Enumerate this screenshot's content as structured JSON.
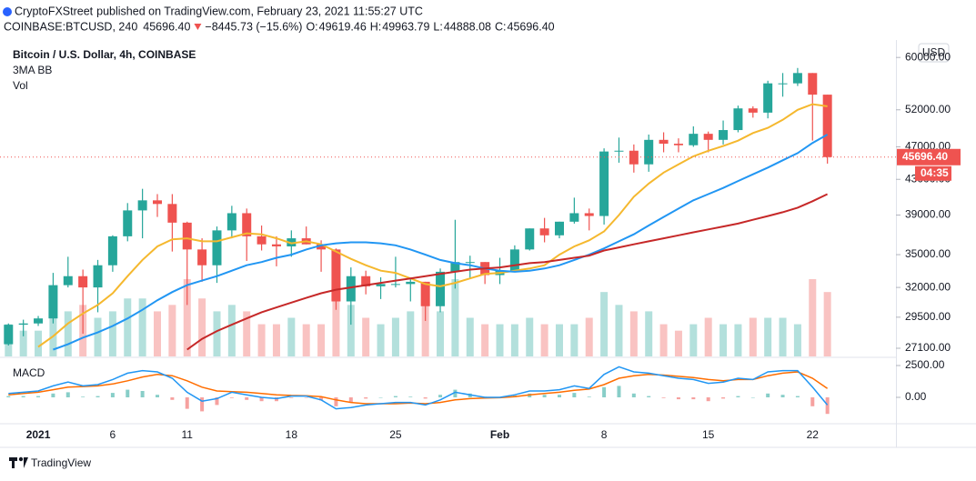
{
  "header": {
    "author": "CryptoFXStreet",
    "published": "published on TradingView.com, February 23, 2021 11:55:27 UTC",
    "symbol": "COINBASE:BTCUSD, 240",
    "last": "45696.40",
    "change": "−8445.73 (−15.6%)",
    "o_label": "O:",
    "o": "49619.46",
    "h_label": "H:",
    "h": "49963.79",
    "l_label": "L:",
    "l": "44888.08",
    "c_label": "C:",
    "c": "45696.40"
  },
  "legend": {
    "title": "Bitcoin / U.S. Dollar, 4h, COINBASE",
    "ma": "3MA BB",
    "vol": "Vol",
    "macd": "MACD"
  },
  "currency": "USD",
  "countdown": "04:35",
  "footer": "TradingView",
  "chart_data": {
    "type": "candlestick",
    "categories": [
      null,
      null,
      "2021",
      null,
      null,
      null,
      null,
      "6",
      null,
      null,
      null,
      null,
      "11",
      null,
      null,
      null,
      null,
      null,
      null,
      "18",
      null,
      null,
      null,
      null,
      null,
      null,
      "25",
      null,
      null,
      null,
      null,
      null,
      null,
      "Feb",
      null,
      null,
      null,
      null,
      null,
      null,
      "8",
      null,
      null,
      null,
      null,
      null,
      null,
      "15",
      null,
      null,
      null,
      null,
      null,
      null,
      "22",
      null
    ],
    "open": [
      27400,
      28900,
      29000,
      29400,
      32200,
      33000,
      32000,
      34000,
      36800,
      39500,
      40600,
      40200,
      38200,
      35500,
      34000,
      37400,
      39200,
      36800,
      36000,
      35800,
      36600,
      36000,
      35500,
      30800,
      33000,
      32100,
      32300,
      32300,
      32500,
      30400,
      33400,
      34300,
      34300,
      33100,
      33500,
      35500,
      37600,
      36900,
      38300,
      39200,
      38900,
      46400,
      46500,
      44800,
      47900,
      47400,
      47200,
      48700,
      47900,
      49200,
      52200,
      51600,
      55900,
      55900,
      57500,
      54200
    ],
    "high": [
      29000,
      29300,
      29600,
      33300,
      34800,
      33600,
      34500,
      36900,
      40300,
      41900,
      41300,
      41300,
      38300,
      36600,
      37800,
      40000,
      39700,
      37900,
      36800,
      37400,
      37800,
      36400,
      35600,
      33800,
      33500,
      32900,
      34800,
      32800,
      32500,
      33700,
      38500,
      34900,
      34300,
      34700,
      35900,
      37600,
      38700,
      38300,
      40900,
      39700,
      46800,
      48200,
      47300,
      48600,
      48900,
      48100,
      49700,
      49000,
      50500,
      52600,
      52500,
      56300,
      57500,
      58300,
      57500,
      54200
    ],
    "low": [
      27300,
      28000,
      28800,
      29000,
      32000,
      28200,
      29900,
      33400,
      36300,
      36600,
      38800,
      35300,
      30500,
      32500,
      32400,
      36600,
      34400,
      35400,
      33900,
      34800,
      36000,
      33400,
      30100,
      28900,
      31400,
      31000,
      32000,
      30800,
      29200,
      29900,
      31900,
      32800,
      32300,
      32300,
      33400,
      35400,
      36200,
      36600,
      38100,
      37400,
      38000,
      45000,
      43800,
      43900,
      46300,
      46300,
      47000,
      46300,
      47300,
      48900,
      50900,
      50800,
      53900,
      55500,
      47800,
      44888
    ],
    "close": [
      28900,
      29000,
      29400,
      32200,
      33000,
      32000,
      34000,
      36800,
      39500,
      40600,
      40200,
      38200,
      35500,
      34000,
      37400,
      39200,
      36800,
      36000,
      35800,
      36600,
      36000,
      35500,
      30800,
      33000,
      32100,
      32300,
      32300,
      32500,
      30400,
      33400,
      34300,
      34300,
      33100,
      33500,
      35500,
      37600,
      36900,
      38300,
      39200,
      38900,
      46400,
      46500,
      44800,
      47900,
      47400,
      47200,
      48700,
      47900,
      49200,
      52200,
      51600,
      55900,
      55900,
      57500,
      54200,
      45696
    ],
    "volume": [
      5,
      4,
      4,
      6,
      7,
      8,
      6,
      7,
      9,
      9,
      7,
      8,
      12,
      9,
      7,
      8,
      7,
      5,
      5,
      6,
      5,
      5,
      9,
      8,
      6,
      5,
      6,
      7,
      8,
      7,
      12,
      6,
      5,
      5,
      5,
      6,
      5,
      5,
      5,
      6,
      10,
      8,
      7,
      7,
      5,
      4,
      5,
      6,
      5,
      5,
      6,
      6,
      6,
      5,
      12,
      10
    ],
    "up_color": "#26a69a",
    "down_color": "#ef5350",
    "ylim": [
      26500,
      62000
    ],
    "log_scale": true,
    "grid": false,
    "yticks": [
      {
        "value": 60000,
        "label": "60000.00"
      },
      {
        "value": 52000,
        "label": "52000.00"
      },
      {
        "value": 47000,
        "label": "47000.00"
      },
      {
        "value": 43000,
        "label": "43000.00"
      },
      {
        "value": 39000,
        "label": "39000.00"
      },
      {
        "value": 35000,
        "label": "35000.00"
      },
      {
        "value": 32000,
        "label": "32000.00"
      },
      {
        "value": 29500,
        "label": "29500.00"
      },
      {
        "value": 27100,
        "label": "27100.00"
      }
    ],
    "last_price": {
      "value": 45696.4,
      "label": "45696.40"
    },
    "ma": [
      {
        "color": "#f5b82e",
        "values": [
          null,
          null,
          27200,
          28000,
          29000,
          29800,
          30500,
          31500,
          33000,
          34500,
          35800,
          36500,
          36600,
          36300,
          36300,
          36700,
          37100,
          37000,
          36600,
          36100,
          36300,
          36000,
          35300,
          34600,
          34000,
          33500,
          33300,
          32800,
          32300,
          32100,
          32400,
          32800,
          33200,
          33300,
          33500,
          33700,
          34000,
          35000,
          35800,
          36400,
          37300,
          39000,
          41000,
          42500,
          43800,
          44800,
          45800,
          46500,
          47100,
          47800,
          48800,
          49500,
          50600,
          52000,
          52800,
          52500
        ]
      },
      {
        "color": "#2196f3",
        "values": [
          null,
          null,
          null,
          27000,
          27400,
          27900,
          28300,
          28800,
          29400,
          30100,
          30900,
          31600,
          32200,
          32600,
          33000,
          33500,
          34000,
          34300,
          34700,
          35000,
          35500,
          35900,
          36100,
          36200,
          36200,
          36100,
          35900,
          35500,
          35000,
          34500,
          34200,
          34000,
          33700,
          33500,
          33400,
          33500,
          33700,
          34000,
          34500,
          35000,
          35600,
          36300,
          37000,
          37900,
          38800,
          39700,
          40600,
          41300,
          42000,
          42800,
          43600,
          44400,
          45300,
          46200,
          47500,
          48600
        ]
      },
      {
        "color": "#c62828",
        "values": [
          null,
          null,
          null,
          null,
          null,
          null,
          null,
          null,
          null,
          null,
          null,
          null,
          27000,
          27800,
          28400,
          28900,
          29400,
          29900,
          30300,
          30700,
          31100,
          31500,
          31800,
          32000,
          32200,
          32400,
          32600,
          32800,
          33000,
          33200,
          33400,
          33600,
          33700,
          33800,
          34000,
          34200,
          34300,
          34500,
          34700,
          34900,
          35400,
          35700,
          36000,
          36300,
          36600,
          36900,
          37200,
          37500,
          37800,
          38100,
          38500,
          38900,
          39300,
          39800,
          40500,
          41300
        ]
      }
    ],
    "macd": {
      "ylim": [
        -2000,
        3000
      ],
      "yticks": [
        {
          "value": 2500,
          "label": "2500.00"
        },
        {
          "value": 0,
          "label": "0.00"
        }
      ],
      "macd": {
        "color": "#2196f3",
        "values": [
          300,
          400,
          500,
          900,
          1200,
          900,
          1000,
          1400,
          1900,
          2100,
          2000,
          1500,
          400,
          -300,
          -100,
          400,
          200,
          0,
          -100,
          100,
          100,
          -200,
          -900,
          -800,
          -600,
          -500,
          -400,
          -400,
          -600,
          -200,
          400,
          200,
          0,
          0,
          200,
          500,
          500,
          600,
          900,
          700,
          1800,
          2400,
          2000,
          1900,
          1700,
          1500,
          1400,
          1100,
          1200,
          1500,
          1400,
          2000,
          2100,
          2100,
          800,
          -600
        ]
      },
      "signal": {
        "color": "#ff6d00",
        "values": [
          200,
          300,
          400,
          600,
          800,
          850,
          900,
          1050,
          1300,
          1600,
          1800,
          1700,
          1300,
          800,
          500,
          450,
          400,
          300,
          200,
          150,
          130,
          50,
          -200,
          -400,
          -500,
          -500,
          -500,
          -450,
          -500,
          -400,
          -200,
          -100,
          -50,
          -30,
          50,
          200,
          300,
          400,
          550,
          650,
          1000,
          1500,
          1700,
          1800,
          1750,
          1650,
          1550,
          1400,
          1300,
          1400,
          1400,
          1700,
          1900,
          2000,
          1500,
          700
        ]
      },
      "histogram": {
        "values": [
          100,
          100,
          100,
          300,
          400,
          50,
          100,
          350,
          600,
          500,
          200,
          -200,
          -900,
          -1100,
          -600,
          -50,
          -200,
          -300,
          -300,
          -50,
          -30,
          -250,
          -700,
          -400,
          -100,
          0,
          100,
          50,
          -100,
          200,
          600,
          300,
          50,
          30,
          150,
          300,
          200,
          200,
          350,
          50,
          800,
          900,
          300,
          100,
          -50,
          -150,
          -150,
          -300,
          -100,
          100,
          0,
          300,
          200,
          100,
          -700,
          -1300
        ]
      }
    }
  }
}
